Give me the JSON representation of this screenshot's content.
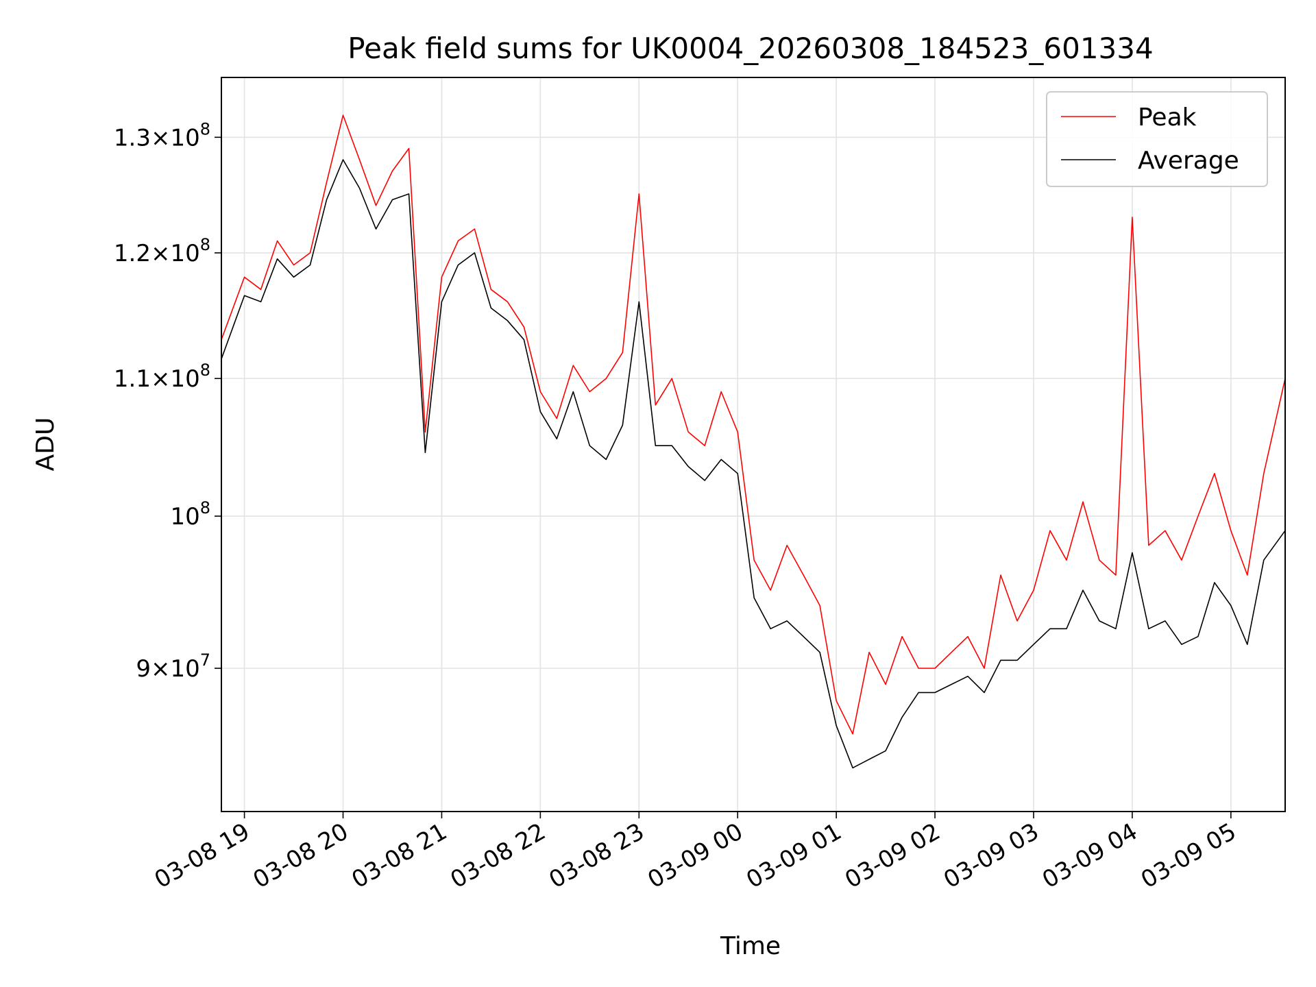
{
  "chart_data": {
    "type": "line",
    "title": "Peak field sums for UK0004_20260308_184523_601334",
    "xlabel": "Time",
    "ylabel": "ADU",
    "y_scale": "log",
    "ylim": [
      81500000,
      135500000
    ],
    "xlim": [
      "2026-03-08 18:46",
      "2026-03-09 05:33"
    ],
    "grid": true,
    "legend_position": "top-right",
    "x_ticks": [
      {
        "t": "2026-03-08 19:00",
        "label": "03-08 19"
      },
      {
        "t": "2026-03-08 20:00",
        "label": "03-08 20"
      },
      {
        "t": "2026-03-08 21:00",
        "label": "03-08 21"
      },
      {
        "t": "2026-03-08 22:00",
        "label": "03-08 22"
      },
      {
        "t": "2026-03-08 23:00",
        "label": "03-08 23"
      },
      {
        "t": "2026-03-09 00:00",
        "label": "03-09 00"
      },
      {
        "t": "2026-03-09 01:00",
        "label": "03-09 01"
      },
      {
        "t": "2026-03-09 02:00",
        "label": "03-09 02"
      },
      {
        "t": "2026-03-09 03:00",
        "label": "03-09 03"
      },
      {
        "t": "2026-03-09 04:00",
        "label": "03-09 04"
      },
      {
        "t": "2026-03-09 05:00",
        "label": "03-09 05"
      }
    ],
    "y_ticks": [
      {
        "value": 130000000,
        "mantissa": "1.3",
        "times": "×",
        "base": "10",
        "exp": "8"
      },
      {
        "value": 120000000,
        "mantissa": "1.2",
        "times": "×",
        "base": "10",
        "exp": "8"
      },
      {
        "value": 110000000,
        "mantissa": "1.1",
        "times": "×",
        "base": "10",
        "exp": "8"
      },
      {
        "value": 100000000,
        "mantissa": "",
        "times": "",
        "base": "10",
        "exp": "8"
      },
      {
        "value": 90000000,
        "mantissa": "9",
        "times": "×",
        "base": "10",
        "exp": "7"
      }
    ],
    "series": [
      {
        "name": "Peak",
        "color": "#ff0000",
        "x": [
          "2026-03-08 18:46",
          "2026-03-08 19:00",
          "2026-03-08 19:10",
          "2026-03-08 19:20",
          "2026-03-08 19:30",
          "2026-03-08 19:40",
          "2026-03-08 19:50",
          "2026-03-08 20:00",
          "2026-03-08 20:10",
          "2026-03-08 20:20",
          "2026-03-08 20:30",
          "2026-03-08 20:40",
          "2026-03-08 20:50",
          "2026-03-08 21:00",
          "2026-03-08 21:10",
          "2026-03-08 21:20",
          "2026-03-08 21:30",
          "2026-03-08 21:40",
          "2026-03-08 21:50",
          "2026-03-08 22:00",
          "2026-03-08 22:10",
          "2026-03-08 22:20",
          "2026-03-08 22:30",
          "2026-03-08 22:40",
          "2026-03-08 22:50",
          "2026-03-08 23:00",
          "2026-03-08 23:10",
          "2026-03-08 23:20",
          "2026-03-08 23:30",
          "2026-03-08 23:40",
          "2026-03-08 23:50",
          "2026-03-09 00:00",
          "2026-03-09 00:10",
          "2026-03-09 00:20",
          "2026-03-09 00:30",
          "2026-03-09 00:40",
          "2026-03-09 00:50",
          "2026-03-09 01:00",
          "2026-03-09 01:10",
          "2026-03-09 01:20",
          "2026-03-09 01:30",
          "2026-03-09 01:40",
          "2026-03-09 01:50",
          "2026-03-09 02:00",
          "2026-03-09 02:10",
          "2026-03-09 02:20",
          "2026-03-09 02:30",
          "2026-03-09 02:40",
          "2026-03-09 02:50",
          "2026-03-09 03:00",
          "2026-03-09 03:10",
          "2026-03-09 03:20",
          "2026-03-09 03:30",
          "2026-03-09 03:40",
          "2026-03-09 03:50",
          "2026-03-09 04:00",
          "2026-03-09 04:10",
          "2026-03-09 04:20",
          "2026-03-09 04:30",
          "2026-03-09 04:40",
          "2026-03-09 04:50",
          "2026-03-09 05:00",
          "2026-03-09 05:10",
          "2026-03-09 05:20",
          "2026-03-09 05:33"
        ],
        "values": [
          113000000,
          118000000,
          117000000,
          121000000,
          119000000,
          120000000,
          126000000,
          132000000,
          128000000,
          124000000,
          127000000,
          129000000,
          106000000,
          118000000,
          121000000,
          122000000,
          117000000,
          116000000,
          114000000,
          109000000,
          107000000,
          111000000,
          109000000,
          110000000,
          112000000,
          125000000,
          108000000,
          110000000,
          106000000,
          105000000,
          109000000,
          106000000,
          97000000,
          95000000,
          98000000,
          96000000,
          94000000,
          88000000,
          86000000,
          91000000,
          89000000,
          92000000,
          90000000,
          90000000,
          91000000,
          92000000,
          90000000,
          96000000,
          93000000,
          95000000,
          99000000,
          97000000,
          101000000,
          97000000,
          96000000,
          123000000,
          98000000,
          99000000,
          97000000,
          100000000,
          103000000,
          99000000,
          96000000,
          103000000,
          110000000
        ]
      },
      {
        "name": "Average",
        "color": "#000000",
        "x": [
          "2026-03-08 18:46",
          "2026-03-08 19:00",
          "2026-03-08 19:10",
          "2026-03-08 19:20",
          "2026-03-08 19:30",
          "2026-03-08 19:40",
          "2026-03-08 19:50",
          "2026-03-08 20:00",
          "2026-03-08 20:10",
          "2026-03-08 20:20",
          "2026-03-08 20:30",
          "2026-03-08 20:40",
          "2026-03-08 20:50",
          "2026-03-08 21:00",
          "2026-03-08 21:10",
          "2026-03-08 21:20",
          "2026-03-08 21:30",
          "2026-03-08 21:40",
          "2026-03-08 21:50",
          "2026-03-08 22:00",
          "2026-03-08 22:10",
          "2026-03-08 22:20",
          "2026-03-08 22:30",
          "2026-03-08 22:40",
          "2026-03-08 22:50",
          "2026-03-08 23:00",
          "2026-03-08 23:10",
          "2026-03-08 23:20",
          "2026-03-08 23:30",
          "2026-03-08 23:40",
          "2026-03-08 23:50",
          "2026-03-09 00:00",
          "2026-03-09 00:10",
          "2026-03-09 00:20",
          "2026-03-09 00:30",
          "2026-03-09 00:40",
          "2026-03-09 00:50",
          "2026-03-09 01:00",
          "2026-03-09 01:10",
          "2026-03-09 01:20",
          "2026-03-09 01:30",
          "2026-03-09 01:40",
          "2026-03-09 01:50",
          "2026-03-09 02:00",
          "2026-03-09 02:10",
          "2026-03-09 02:20",
          "2026-03-09 02:30",
          "2026-03-09 02:40",
          "2026-03-09 02:50",
          "2026-03-09 03:00",
          "2026-03-09 03:10",
          "2026-03-09 03:20",
          "2026-03-09 03:30",
          "2026-03-09 03:40",
          "2026-03-09 03:50",
          "2026-03-09 04:00",
          "2026-03-09 04:10",
          "2026-03-09 04:20",
          "2026-03-09 04:30",
          "2026-03-09 04:40",
          "2026-03-09 04:50",
          "2026-03-09 05:00",
          "2026-03-09 05:10",
          "2026-03-09 05:20",
          "2026-03-09 05:33"
        ],
        "values": [
          111500000,
          116500000,
          116000000,
          119500000,
          118000000,
          119000000,
          124500000,
          128000000,
          125500000,
          122000000,
          124500000,
          125000000,
          104500000,
          116000000,
          119000000,
          120000000,
          115500000,
          114500000,
          113000000,
          107500000,
          105500000,
          109000000,
          105000000,
          104000000,
          106500000,
          116000000,
          105000000,
          105000000,
          103500000,
          102500000,
          104000000,
          103000000,
          94500000,
          92500000,
          93000000,
          92000000,
          91000000,
          86500000,
          84000000,
          84500000,
          85000000,
          87000000,
          88500000,
          88500000,
          89000000,
          89500000,
          88500000,
          90500000,
          90500000,
          91500000,
          92500000,
          92500000,
          95000000,
          93000000,
          92500000,
          97500000,
          92500000,
          93000000,
          91500000,
          92000000,
          95500000,
          94000000,
          91500000,
          97000000,
          99000000
        ]
      }
    ]
  }
}
